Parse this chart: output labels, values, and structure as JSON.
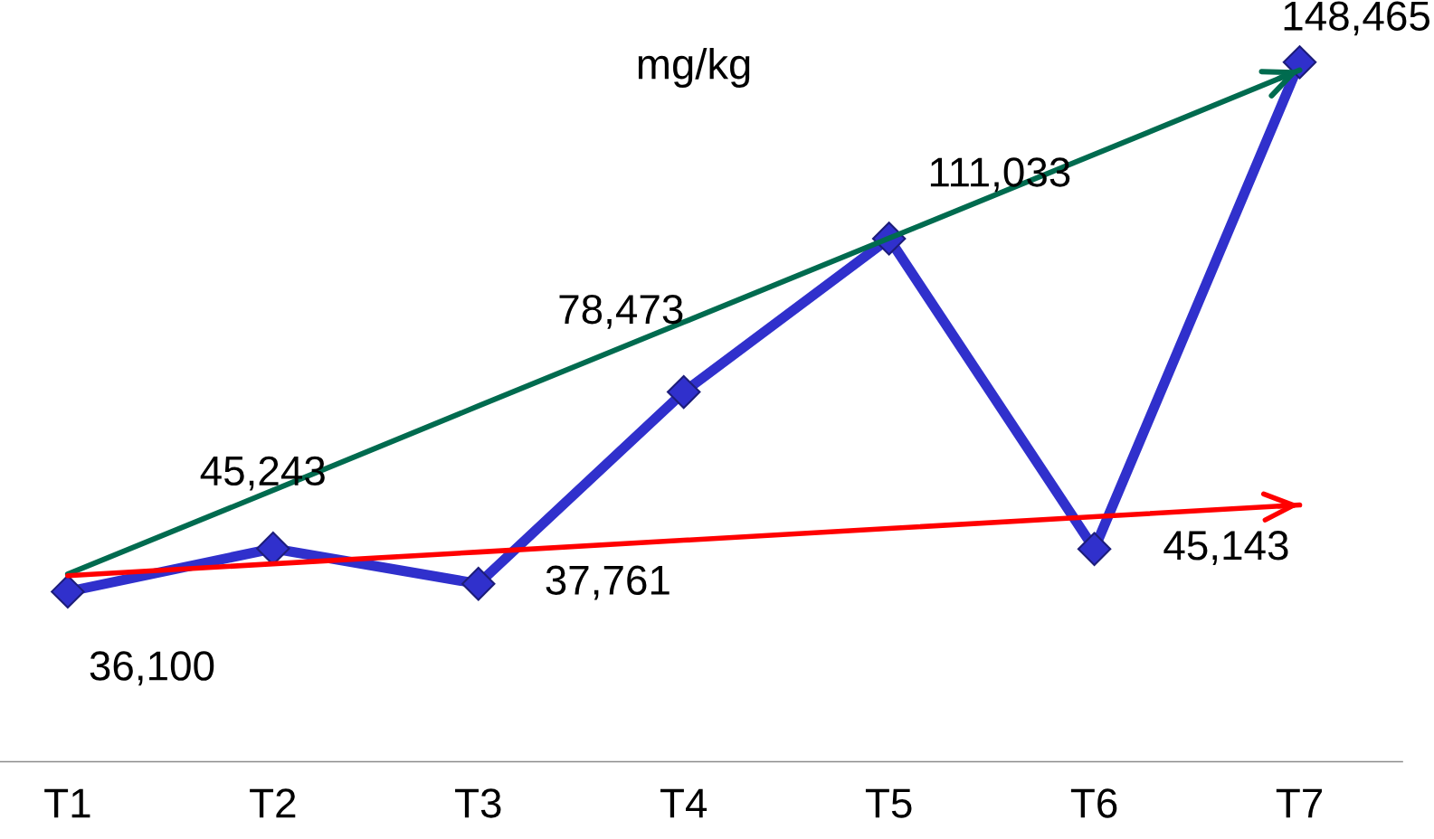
{
  "chart_data": {
    "type": "line",
    "title": "mg/kg",
    "categories": [
      "T1",
      "T2",
      "T3",
      "T4",
      "T5",
      "T6",
      "T7"
    ],
    "series": [
      {
        "color": "#3030cc",
        "values": [
          36100,
          45243,
          37761,
          78473,
          111033,
          45143,
          148465
        ],
        "value_labels": [
          "36,100",
          "45,243",
          "37,761",
          "78,473",
          "111,033",
          "45,143",
          "148,465"
        ]
      },
      {
        "color": "#006b4f",
        "values": [
          39800,
          57600,
          75500,
          93300,
          111100,
          128900,
          146800
        ],
        "marker": "none"
      },
      {
        "color": "#ff0000",
        "values": [
          39500,
          42000,
          44500,
          47000,
          49500,
          52000,
          54500
        ],
        "marker": "none"
      }
    ],
    "marker": "diamond",
    "line_style": "solid",
    "tick_labels": "x"
  }
}
